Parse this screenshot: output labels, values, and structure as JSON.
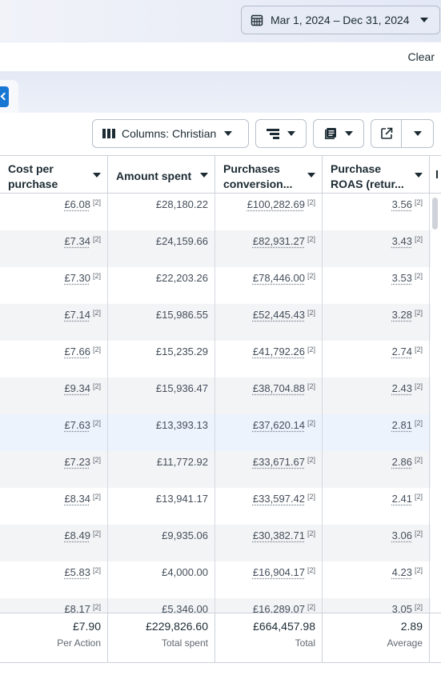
{
  "date_range": {
    "label": "Mar 1, 2024 – Dec 31, 2024",
    "icon": "calendar-icon"
  },
  "filter": {
    "clear_label": "Clear"
  },
  "toolbar": {
    "columns_label": "Columns: Christian",
    "breakdown_icon": "breakdown-icon",
    "reports_icon": "reports-icon",
    "export_icon": "export-icon"
  },
  "table": {
    "headers": [
      {
        "label": "Cost per purchase"
      },
      {
        "label": "Amount spent"
      },
      {
        "label": "Purchases conversion..."
      },
      {
        "label": "Purchase ROAS (retur..."
      }
    ],
    "rows": [
      {
        "cost": "£6.08",
        "spent": "£28,180.22",
        "conv": "£100,282.69",
        "roas": "3.56"
      },
      {
        "cost": "£7.34",
        "spent": "£24,159.66",
        "conv": "£82,931.27",
        "roas": "3.43"
      },
      {
        "cost": "£7.30",
        "spent": "£22,203.26",
        "conv": "£78,446.00",
        "roas": "3.53"
      },
      {
        "cost": "£7.14",
        "spent": "£15,986.55",
        "conv": "£52,445.43",
        "roas": "3.28"
      },
      {
        "cost": "£7.66",
        "spent": "£15,235.29",
        "conv": "£41,792.26",
        "roas": "2.74"
      },
      {
        "cost": "£9.34",
        "spent": "£15,936.47",
        "conv": "£38,704.88",
        "roas": "2.43"
      },
      {
        "cost": "£7.63",
        "spent": "£13,393.13",
        "conv": "£37,620.14",
        "roas": "2.81"
      },
      {
        "cost": "£7.23",
        "spent": "£11,772.92",
        "conv": "£33,671.67",
        "roas": "2.86"
      },
      {
        "cost": "£8.34",
        "spent": "£13,941.17",
        "conv": "£33,597.42",
        "roas": "2.41"
      },
      {
        "cost": "£8.49",
        "spent": "£9,935.06",
        "conv": "£30,382.71",
        "roas": "3.06"
      },
      {
        "cost": "£5.83",
        "spent": "£4,000.00",
        "conv": "£16,904.17",
        "roas": "4.23"
      },
      {
        "cost": "£8.17",
        "spent": "£5,346.00",
        "conv": "£16,289.07",
        "roas": "3.05"
      }
    ],
    "footnote_marker": "[2]",
    "totals": [
      {
        "value": "£7.90",
        "caption": "Per Action"
      },
      {
        "value": "£229,826.60",
        "caption": "Total spent"
      },
      {
        "value": "£664,457.98",
        "caption": "Total"
      },
      {
        "value": "2.89",
        "caption": "Average"
      }
    ]
  },
  "colors": {
    "accent": "#1876d3",
    "highlight_row": "#edf3fd"
  }
}
